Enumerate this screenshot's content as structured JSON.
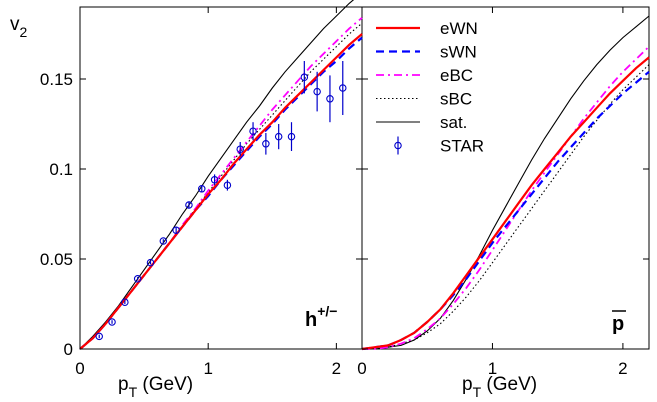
{
  "chart_data": [
    {
      "type": "line",
      "panel_label": "h",
      "panel_label_sup": "+/−",
      "xlabel": "p",
      "xlabel_sub": "T",
      "xlabel_unit": " (GeV)",
      "ylabel": "v",
      "ylabel_sub": "2",
      "xlim": [
        0,
        2.2
      ],
      "ylim": [
        0,
        0.19
      ],
      "xticks": [
        0,
        1,
        2
      ],
      "xtick_labels": [
        "0",
        "1",
        "2"
      ],
      "yticks": [
        0,
        0.05,
        0.1,
        0.15
      ],
      "ytick_labels": [
        "0",
        "0.05",
        "0.1",
        "0.15"
      ],
      "grid": false,
      "series": [
        {
          "name": "eWN",
          "color": "#ff0000",
          "style": "solid",
          "x": [
            0,
            0.1,
            0.2,
            0.3,
            0.4,
            0.5,
            0.6,
            0.7,
            0.8,
            0.9,
            1.0,
            1.1,
            1.2,
            1.3,
            1.4,
            1.5,
            1.6,
            1.7,
            1.8,
            1.9,
            2.0,
            2.1,
            2.2
          ],
          "y": [
            0,
            0.006,
            0.014,
            0.023,
            0.032,
            0.041,
            0.05,
            0.059,
            0.068,
            0.077,
            0.086,
            0.094,
            0.103,
            0.111,
            0.119,
            0.126,
            0.134,
            0.141,
            0.148,
            0.155,
            0.162,
            0.169,
            0.175
          ]
        },
        {
          "name": "sWN",
          "color": "#0000ff",
          "style": "dashed",
          "x": [
            0,
            0.1,
            0.2,
            0.3,
            0.4,
            0.5,
            0.6,
            0.7,
            0.8,
            0.9,
            1.0,
            1.1,
            1.2,
            1.3,
            1.4,
            1.5,
            1.6,
            1.7,
            1.8,
            1.9,
            2.0,
            2.1,
            2.2
          ],
          "y": [
            0,
            0.006,
            0.014,
            0.023,
            0.032,
            0.041,
            0.05,
            0.059,
            0.068,
            0.077,
            0.085,
            0.094,
            0.102,
            0.11,
            0.118,
            0.125,
            0.133,
            0.14,
            0.147,
            0.154,
            0.16,
            0.167,
            0.173
          ]
        },
        {
          "name": "eBC",
          "color": "#ff00ff",
          "style": "dashdot",
          "x": [
            0,
            0.1,
            0.2,
            0.3,
            0.4,
            0.5,
            0.6,
            0.7,
            0.8,
            0.9,
            1.0,
            1.1,
            1.2,
            1.3,
            1.4,
            1.5,
            1.6,
            1.7,
            1.8,
            1.9,
            2.0,
            2.1,
            2.2
          ],
          "y": [
            0,
            0.006,
            0.014,
            0.023,
            0.032,
            0.041,
            0.05,
            0.059,
            0.069,
            0.078,
            0.088,
            0.097,
            0.106,
            0.115,
            0.124,
            0.133,
            0.141,
            0.149,
            0.157,
            0.164,
            0.171,
            0.178,
            0.184
          ]
        },
        {
          "name": "sBC",
          "color": "#000000",
          "style": "dotted",
          "x": [
            0,
            0.1,
            0.2,
            0.3,
            0.4,
            0.5,
            0.6,
            0.7,
            0.8,
            0.9,
            1.0,
            1.1,
            1.2,
            1.3,
            1.4,
            1.5,
            1.6,
            1.7,
            1.8,
            1.9,
            2.0,
            2.1,
            2.2
          ],
          "y": [
            0,
            0.006,
            0.014,
            0.023,
            0.032,
            0.041,
            0.05,
            0.059,
            0.068,
            0.078,
            0.087,
            0.096,
            0.105,
            0.114,
            0.122,
            0.13,
            0.138,
            0.146,
            0.154,
            0.161,
            0.168,
            0.175,
            0.181
          ]
        },
        {
          "name": "sat.",
          "color": "#000000",
          "style": "solid-thin",
          "x": [
            0,
            0.1,
            0.2,
            0.3,
            0.4,
            0.5,
            0.6,
            0.7,
            0.8,
            0.9,
            1.0,
            1.1,
            1.2,
            1.3,
            1.4,
            1.5,
            1.6,
            1.7,
            1.8,
            1.9,
            2.0,
            2.1,
            2.2
          ],
          "y": [
            0,
            0.007,
            0.015,
            0.024,
            0.034,
            0.044,
            0.054,
            0.064,
            0.075,
            0.085,
            0.096,
            0.106,
            0.116,
            0.126,
            0.135,
            0.145,
            0.154,
            0.162,
            0.17,
            0.178,
            0.185,
            0.192,
            0.198
          ]
        },
        {
          "name": "STAR",
          "color": "#0000cc",
          "style": "markers",
          "x": [
            0.15,
            0.25,
            0.35,
            0.45,
            0.55,
            0.65,
            0.75,
            0.85,
            0.95,
            1.05,
            1.15,
            1.25,
            1.35,
            1.45,
            1.55,
            1.65,
            1.75,
            1.85,
            1.95,
            2.05
          ],
          "y": [
            0.007,
            0.015,
            0.026,
            0.039,
            0.048,
            0.06,
            0.066,
            0.08,
            0.089,
            0.094,
            0.091,
            0.111,
            0.121,
            0.114,
            0.118,
            0.118,
            0.151,
            0.143,
            0.139,
            0.145
          ],
          "err": [
            0.001,
            0.001,
            0.001,
            0.001,
            0.001,
            0.001,
            0.002,
            0.002,
            0.002,
            0.003,
            0.003,
            0.004,
            0.005,
            0.006,
            0.007,
            0.008,
            0.009,
            0.011,
            0.013,
            0.015
          ]
        }
      ]
    },
    {
      "type": "line",
      "panel_label": "p",
      "panel_label_overline": true,
      "xlabel": "p",
      "xlabel_sub": "T",
      "xlabel_unit": " (GeV)",
      "xlim": [
        0,
        2.2
      ],
      "ylim": [
        0,
        0.19
      ],
      "xticks": [
        0,
        1,
        2
      ],
      "xtick_labels": [
        "0",
        "1",
        "2"
      ],
      "grid": false,
      "legend_position": "top-left",
      "series": [
        {
          "name": "eWN",
          "color": "#ff0000",
          "style": "solid",
          "x": [
            0,
            0.1,
            0.2,
            0.3,
            0.4,
            0.5,
            0.6,
            0.7,
            0.8,
            0.9,
            1.0,
            1.1,
            1.2,
            1.3,
            1.4,
            1.5,
            1.6,
            1.7,
            1.8,
            1.9,
            2.0,
            2.1,
            2.2
          ],
          "y": [
            0,
            0.001,
            0.002,
            0.005,
            0.009,
            0.015,
            0.022,
            0.031,
            0.041,
            0.051,
            0.061,
            0.071,
            0.081,
            0.091,
            0.1,
            0.109,
            0.118,
            0.126,
            0.134,
            0.142,
            0.149,
            0.156,
            0.162
          ]
        },
        {
          "name": "sWN",
          "color": "#0000ff",
          "style": "dashed",
          "x": [
            0,
            0.1,
            0.2,
            0.3,
            0.4,
            0.5,
            0.6,
            0.7,
            0.8,
            0.9,
            1.0,
            1.1,
            1.2,
            1.3,
            1.4,
            1.5,
            1.6,
            1.7,
            1.8,
            1.9,
            2.0,
            2.1,
            2.2
          ],
          "y": [
            0,
            0.001,
            0.002,
            0.005,
            0.009,
            0.015,
            0.022,
            0.03,
            0.039,
            0.049,
            0.059,
            0.068,
            0.077,
            0.086,
            0.095,
            0.104,
            0.112,
            0.12,
            0.128,
            0.135,
            0.142,
            0.148,
            0.154
          ]
        },
        {
          "name": "eBC",
          "color": "#ff00ff",
          "style": "dashdot",
          "x": [
            0,
            0.1,
            0.2,
            0.3,
            0.4,
            0.5,
            0.6,
            0.7,
            0.8,
            0.9,
            1.0,
            1.1,
            1.2,
            1.3,
            1.4,
            1.5,
            1.6,
            1.7,
            1.8,
            1.9,
            2.0,
            2.1,
            2.2
          ],
          "y": [
            0,
            0.0,
            0.001,
            0.003,
            0.006,
            0.011,
            0.017,
            0.025,
            0.034,
            0.044,
            0.055,
            0.066,
            0.077,
            0.088,
            0.098,
            0.108,
            0.118,
            0.128,
            0.137,
            0.146,
            0.154,
            0.161,
            0.168
          ]
        },
        {
          "name": "sBC",
          "color": "#000000",
          "style": "dotted",
          "x": [
            0,
            0.1,
            0.2,
            0.3,
            0.4,
            0.5,
            0.6,
            0.7,
            0.8,
            0.9,
            1.0,
            1.1,
            1.2,
            1.3,
            1.4,
            1.5,
            1.6,
            1.7,
            1.8,
            1.9,
            2.0,
            2.1,
            2.2
          ],
          "y": [
            0,
            0.0,
            0.001,
            0.003,
            0.005,
            0.009,
            0.014,
            0.021,
            0.029,
            0.038,
            0.048,
            0.058,
            0.068,
            0.078,
            0.088,
            0.098,
            0.108,
            0.118,
            0.127,
            0.136,
            0.144,
            0.151,
            0.158
          ]
        },
        {
          "name": "sat.",
          "color": "#000000",
          "style": "solid-thin",
          "x": [
            0,
            0.1,
            0.2,
            0.3,
            0.4,
            0.5,
            0.6,
            0.7,
            0.8,
            0.9,
            1.0,
            1.1,
            1.2,
            1.3,
            1.4,
            1.5,
            1.6,
            1.7,
            1.8,
            1.9,
            2.0,
            2.1,
            2.2
          ],
          "y": [
            0,
            0.0,
            0.001,
            0.002,
            0.005,
            0.01,
            0.017,
            0.027,
            0.039,
            0.052,
            0.066,
            0.079,
            0.092,
            0.105,
            0.117,
            0.128,
            0.139,
            0.149,
            0.158,
            0.166,
            0.173,
            0.179,
            0.185
          ]
        }
      ],
      "legend": [
        {
          "label": "eWN",
          "color": "#ff0000",
          "style": "solid"
        },
        {
          "label": "sWN",
          "color": "#0000ff",
          "style": "dashed"
        },
        {
          "label": "eBC",
          "color": "#ff00ff",
          "style": "dashdot"
        },
        {
          "label": "sBC",
          "color": "#000000",
          "style": "dotted"
        },
        {
          "label": "sat.",
          "color": "#000000",
          "style": "solid-thin"
        },
        {
          "label": "STAR",
          "color": "#0000cc",
          "style": "markers"
        }
      ]
    }
  ]
}
